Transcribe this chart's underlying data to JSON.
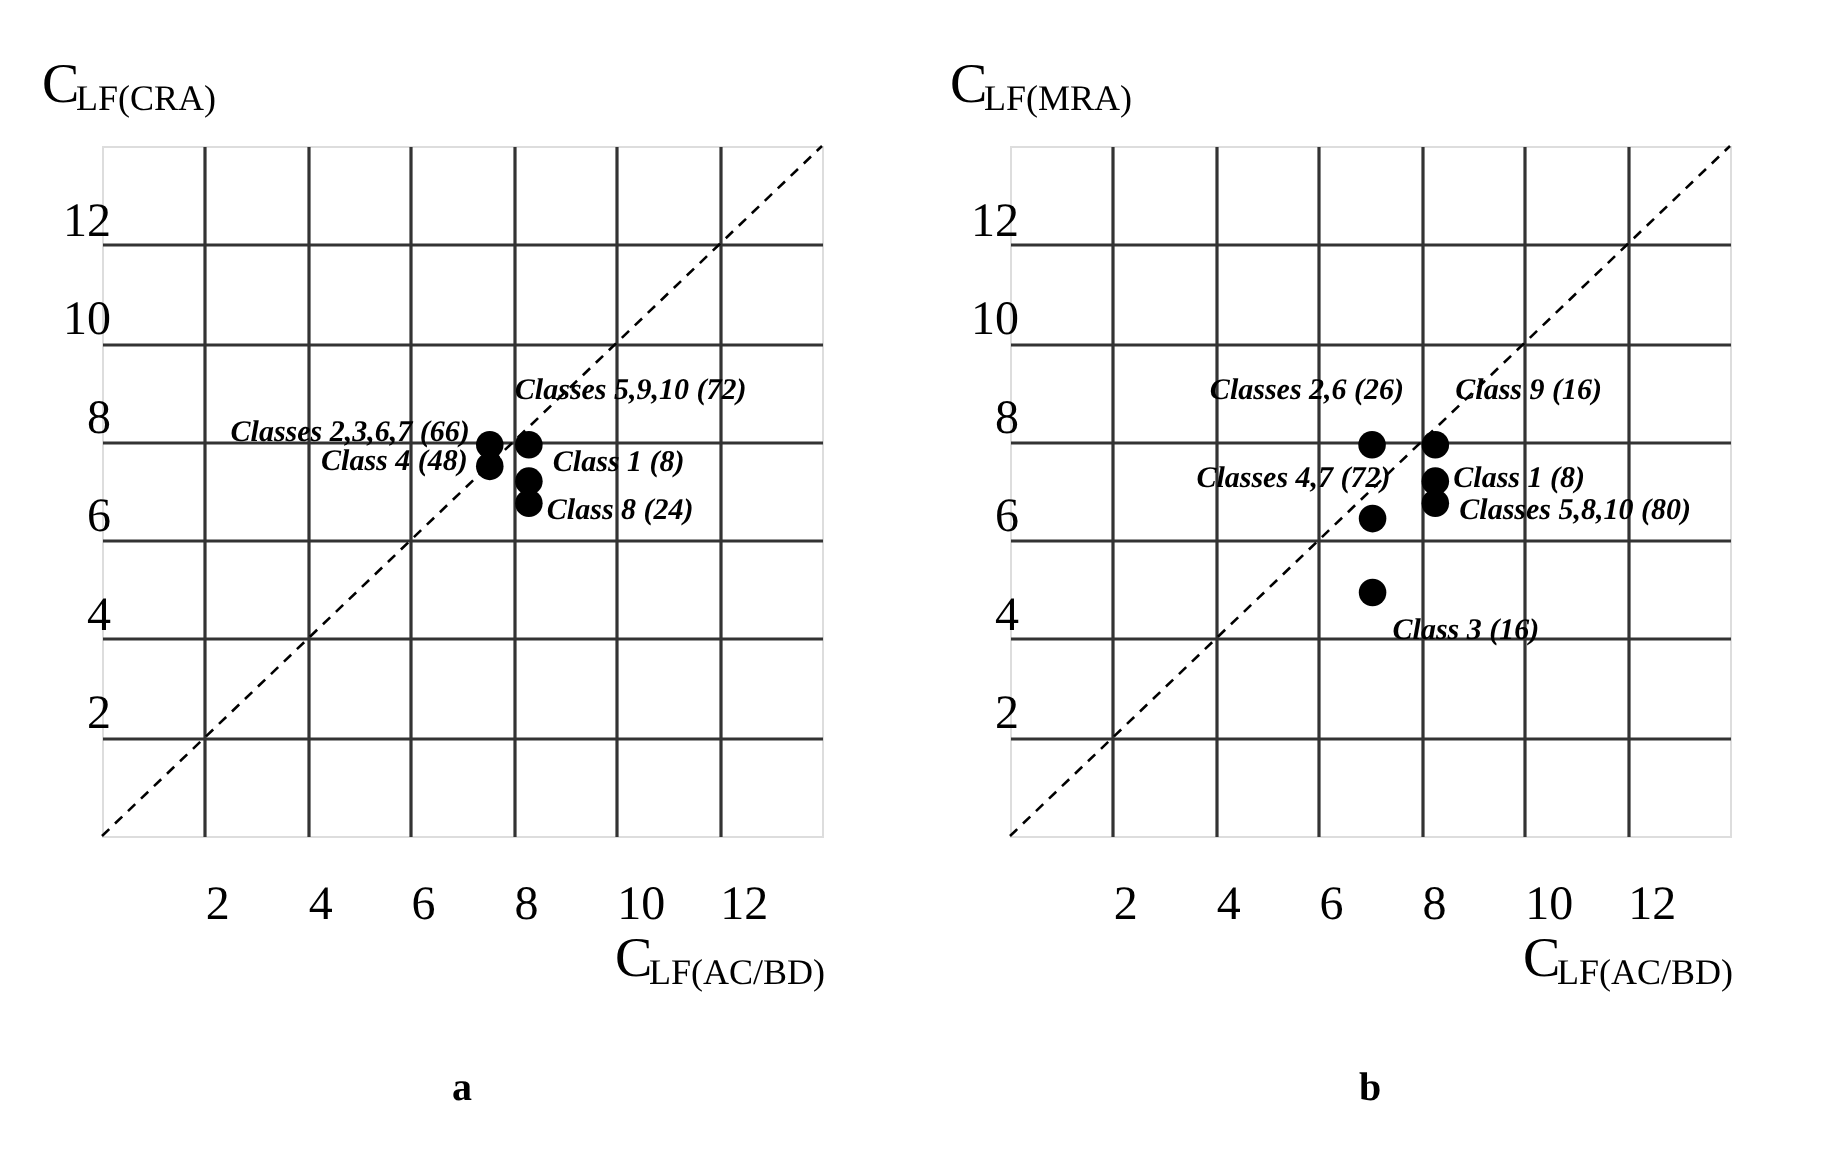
{
  "chart_data": [
    {
      "type": "scatter",
      "title": "a",
      "xlabel": "C$_{LF(AC/BD)}$",
      "ylabel": "C$_{LF(CRA)}$",
      "xlim": [
        0,
        14
      ],
      "ylim": [
        0,
        14
      ],
      "xticks": [
        2,
        4,
        6,
        8,
        10,
        12
      ],
      "yticks": [
        2,
        4,
        6,
        8,
        10,
        12
      ],
      "grid": true,
      "series": [
        {
          "color": "#000000",
          "marker": "circle",
          "x": [
            7.54,
            7.54,
            8.3,
            8.3,
            8.3
          ],
          "values": [
            7.94,
            7.5,
            7.94,
            7.2,
            6.75
          ]
        },
        {
          "type": "line",
          "color": "#000000",
          "line_style": "dashed",
          "x": [
            0,
            14
          ],
          "values": [
            0,
            14
          ]
        }
      ],
      "annotations": [
        {
          "text": "Classes 5,9,10  (72)",
          "x": 8.3,
          "y": 7.94
        },
        {
          "text": "Classes 2,3,6,7 (66)",
          "x": 7.54,
          "y": 7.94
        },
        {
          "text": "Class 4 (48)",
          "x": 7.54,
          "y": 7.5
        },
        {
          "text": "Class  1 (8)",
          "x": 8.3,
          "y": 7.2
        },
        {
          "text": "Class  8 (24)",
          "x": 8.3,
          "y": 6.75
        }
      ]
    },
    {
      "type": "scatter",
      "title": "b",
      "xlabel": "C$_{LF(AC/BD)}$",
      "ylabel": "C$_{LF(MRA)}$",
      "xlim": [
        0,
        14
      ],
      "ylim": [
        0,
        14
      ],
      "xticks": [
        2,
        4,
        6,
        8,
        10,
        12
      ],
      "yticks": [
        2,
        4,
        6,
        8,
        10,
        12
      ],
      "grid": true,
      "series": [
        {
          "color": "#000000",
          "marker": "circle",
          "x": [
            7.04,
            7.05,
            7.05,
            8.27,
            8.27,
            8.27
          ],
          "values": [
            7.94,
            6.44,
            4.94,
            7.94,
            7.2,
            6.75
          ]
        },
        {
          "type": "line",
          "color": "#000000",
          "line_style": "dashed",
          "x": [
            0,
            14
          ],
          "values": [
            0,
            14
          ]
        }
      ],
      "annotations": [
        {
          "text": "Classes 2,6  (26)",
          "x": 7.04,
          "y": 7.94
        },
        {
          "text": "Class 9 (16)",
          "x": 8.27,
          "y": 7.94
        },
        {
          "text": "Classes 4,7 (72)",
          "x": 7.05,
          "y": 6.44
        },
        {
          "text": "Class  1 (8)",
          "x": 8.27,
          "y": 7.2
        },
        {
          "text": "Classes 5,8,10  (80)",
          "x": 8.27,
          "y": 6.75
        },
        {
          "text": "Class  3 (16)",
          "x": 7.05,
          "y": 4.94
        }
      ]
    }
  ]
}
